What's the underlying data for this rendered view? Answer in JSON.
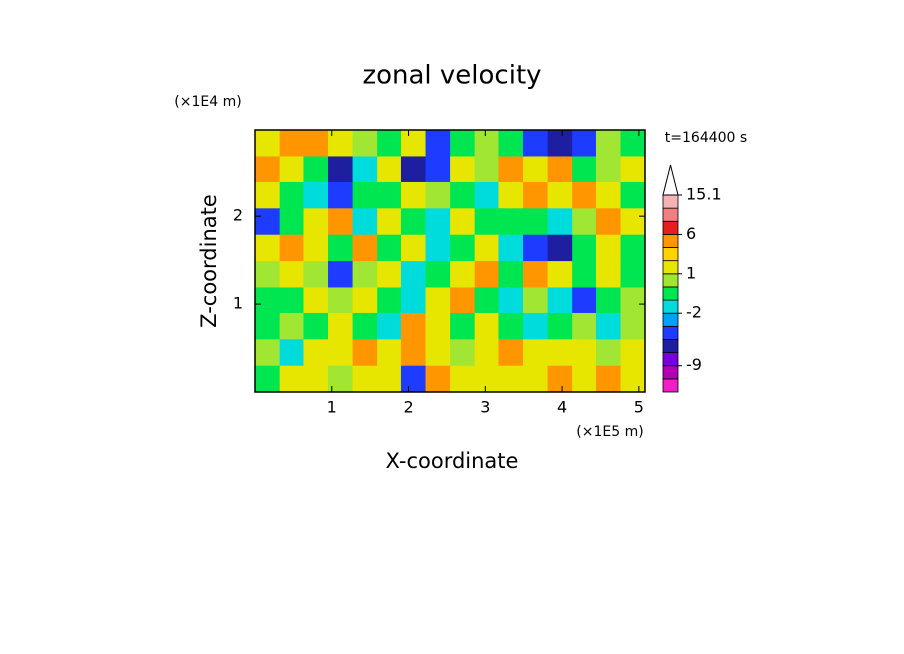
{
  "chart_data": {
    "type": "contour",
    "title": "zonal velocity",
    "x_label": "X-coordinate",
    "y_label": "Z-coordinate",
    "x_unit": "(×1E5 m)",
    "y_unit": "(×1E4 m)",
    "time_label": "t=164400 s",
    "xlim": [
      0,
      5.08
    ],
    "ylim": [
      0,
      2.98
    ],
    "xticks": [
      1,
      2,
      3,
      4,
      5
    ],
    "yticks": [
      1,
      2
    ],
    "x": [
      0.16,
      0.48,
      0.79,
      1.11,
      1.43,
      1.75,
      2.06,
      2.38,
      2.7,
      3.02,
      3.33,
      3.65,
      3.97,
      4.29,
      4.6,
      4.92
    ],
    "y": [
      2.83,
      2.53,
      2.24,
      1.94,
      1.64,
      1.34,
      1.04,
      0.75,
      0.45,
      0.15
    ],
    "z": [
      [
        1.5,
        4,
        4,
        1.5,
        0.5,
        -0.5,
        1.5,
        -3.5,
        -0.5,
        0.5,
        -0.5,
        -3.5,
        -5,
        -3.5,
        0.5,
        -0.5
      ],
      [
        4,
        1.5,
        -0.5,
        -5,
        -1.5,
        1.5,
        -5,
        -3.5,
        1.5,
        0.5,
        4,
        1.5,
        4,
        -0.5,
        0.5,
        1.5
      ],
      [
        1.5,
        -0.5,
        -1.5,
        -3.5,
        -0.5,
        -0.5,
        1.5,
        0.5,
        -0.5,
        -1.5,
        1.5,
        4,
        1.5,
        4,
        1.5,
        -0.5
      ],
      [
        -3.5,
        -0.5,
        1.5,
        4,
        -1.5,
        1.5,
        -0.5,
        -1.5,
        1.5,
        -0.5,
        -0.5,
        -0.5,
        -1.5,
        0.5,
        4,
        1.5
      ],
      [
        1.5,
        4,
        1.5,
        -0.5,
        4,
        -0.5,
        1.5,
        -1.5,
        -0.5,
        1.5,
        -1.5,
        -3.5,
        -5,
        -0.5,
        1.5,
        -0.5
      ],
      [
        0.5,
        1.5,
        0.5,
        -3.5,
        0.5,
        1.5,
        -1.5,
        -0.5,
        1.5,
        4,
        -0.5,
        4,
        1.5,
        -0.5,
        1.5,
        -0.5
      ],
      [
        -0.5,
        -0.5,
        1.5,
        0.5,
        1.5,
        -0.5,
        -1.5,
        1.5,
        4,
        -0.5,
        -1.5,
        0.5,
        -1.5,
        -3.5,
        -0.5,
        0.5
      ],
      [
        -0.5,
        0.5,
        -0.5,
        1.5,
        -0.5,
        -1.5,
        4,
        1.5,
        -0.5,
        1.5,
        -0.5,
        -1.5,
        -0.5,
        0.5,
        -1.5,
        0.5
      ],
      [
        0.5,
        -1.5,
        1.5,
        1.5,
        4,
        1.5,
        4,
        1.5,
        0.5,
        1.5,
        4,
        1.5,
        1.5,
        1.5,
        0.5,
        1.5
      ],
      [
        -0.5,
        1.5,
        1.5,
        0.5,
        1.5,
        1.5,
        -3.5,
        4,
        1.5,
        1.5,
        1.5,
        1.5,
        4,
        1.5,
        4,
        1.5
      ]
    ],
    "colorbar": {
      "levels": [
        -18,
        -12,
        -9,
        -6,
        -4,
        -3,
        -2,
        -1,
        0,
        1,
        2,
        3,
        6,
        9,
        12,
        15.1
      ],
      "colors": [
        "#f01ec8",
        "#b400b4",
        "#7800dc",
        "#1e1ea0",
        "#1e3cff",
        "#00a0ff",
        "#00dcdc",
        "#00e650",
        "#a0e632",
        "#e6e600",
        "#ffd200",
        "#ff9600",
        "#e61e1e",
        "#f08080",
        "#f5b4b4"
      ],
      "over_color": "#ffffff",
      "ticks": [
        -9,
        -2,
        1,
        6,
        15.1
      ]
    }
  }
}
